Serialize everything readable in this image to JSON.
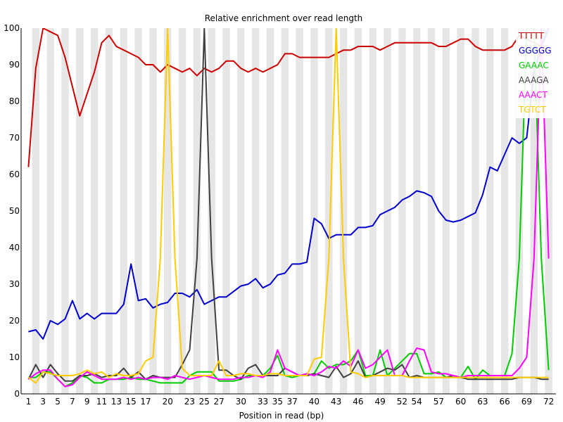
{
  "chart_data": {
    "type": "line",
    "title": "Relative enrichment over read length",
    "xlabel": "Position in read (bp)",
    "ylabel": "",
    "ylim": [
      0,
      100
    ],
    "yticks": [
      0,
      10,
      20,
      30,
      40,
      50,
      60,
      70,
      80,
      90,
      100
    ],
    "x": [
      1,
      2,
      3,
      4,
      5,
      6,
      7,
      8,
      9,
      10,
      11,
      12,
      13,
      14,
      15,
      16,
      17,
      18,
      19,
      20,
      21,
      22,
      23,
      24,
      25,
      26,
      27,
      28,
      29,
      30,
      31,
      32,
      33,
      34,
      35,
      36,
      37,
      38,
      39,
      40,
      41,
      42,
      43,
      44,
      45,
      46,
      47,
      48,
      49,
      50,
      51,
      52,
      53,
      54,
      55,
      56,
      57,
      58,
      59,
      60,
      61,
      62,
      63,
      64,
      65,
      66,
      67,
      68,
      69,
      70,
      71,
      72
    ],
    "xtick_labels": [
      "1",
      "3",
      "5",
      "7",
      "9",
      "11",
      "13",
      "15",
      "17",
      "20",
      "23",
      "25",
      "27",
      "30",
      "33",
      "35",
      "37",
      "40",
      "43",
      "46",
      "49",
      "52",
      "54",
      "57",
      "60",
      "63",
      "66",
      "69",
      "72"
    ],
    "xtick_positions": [
      1,
      3,
      5,
      7,
      9,
      11,
      13,
      15,
      17,
      20,
      23,
      25,
      27,
      30,
      33,
      35,
      37,
      40,
      43,
      46,
      49,
      52,
      54,
      57,
      60,
      63,
      66,
      69,
      72
    ],
    "grid": "alternating vertical bands",
    "legend": "top-right",
    "series": [
      {
        "name": "TTTTT",
        "color": "#cc0000",
        "values": [
          62,
          89,
          100,
          99,
          98,
          92,
          84,
          76,
          82,
          88,
          96,
          98,
          95,
          94,
          93,
          92,
          90,
          90,
          88,
          90,
          89,
          88,
          89,
          87,
          89,
          88,
          89,
          91,
          91,
          89,
          88,
          89,
          88,
          89,
          90,
          93,
          93,
          92,
          92,
          92,
          92,
          92,
          93,
          94,
          94,
          95,
          95,
          95,
          94,
          95,
          96,
          96,
          96,
          96,
          96,
          96,
          95,
          95,
          96,
          97,
          97,
          95,
          94,
          94,
          94,
          94,
          95,
          98,
          97,
          96,
          95,
          94
        ]
      },
      {
        "name": "GGGGG",
        "color": "#0000cc",
        "values": [
          17,
          17.5,
          15,
          20,
          19,
          20.5,
          25.5,
          20.5,
          22,
          20.5,
          22,
          22,
          22,
          24.5,
          35.5,
          25.5,
          26,
          23.5,
          24.5,
          25,
          27.5,
          27.5,
          26.5,
          28.5,
          24.5,
          25.5,
          26.5,
          26.5,
          28,
          29.5,
          30,
          31.5,
          29,
          30,
          32.5,
          33,
          35.5,
          35.5,
          36,
          48,
          46.5,
          42.5,
          43.5,
          43.5,
          43.5,
          45.5,
          45.5,
          46,
          49,
          50,
          51,
          53,
          54,
          55.5,
          55,
          54,
          50,
          47.5,
          47,
          47.5,
          48.5,
          49.5,
          54.5,
          62,
          61,
          65.5,
          70,
          68.5,
          70,
          88,
          95,
          100
        ]
      },
      {
        "name": "GAAAC",
        "color": "#00cc00",
        "values": [
          4.5,
          4.5,
          6,
          6,
          4,
          2,
          3,
          5,
          4.5,
          3,
          3,
          4,
          4,
          4,
          4.5,
          4,
          4,
          3.5,
          3,
          3,
          3,
          3,
          5,
          6,
          6,
          6,
          3.5,
          3.5,
          3.5,
          4,
          5,
          5,
          5,
          7,
          10.5,
          5,
          4.5,
          5,
          5,
          5.5,
          9,
          7,
          8,
          8,
          9,
          12,
          5,
          5,
          12,
          5,
          7,
          9,
          11,
          11,
          5.5,
          5.5,
          6,
          4.5,
          4.5,
          4.5,
          7.5,
          4,
          6.5,
          5,
          5,
          5,
          11,
          37,
          100,
          100,
          37,
          6.5
        ]
      },
      {
        "name": "AAAGA",
        "color": "#404040",
        "values": [
          4,
          8,
          4.5,
          8,
          5.5,
          3.5,
          3.5,
          5,
          5,
          5.5,
          4.5,
          5,
          5,
          7,
          4.5,
          6,
          4,
          5,
          4.5,
          4.5,
          4.5,
          8,
          12,
          37,
          100,
          37,
          6.5,
          6.5,
          5,
          4,
          7,
          8,
          5,
          5,
          5,
          7,
          6,
          5,
          5,
          5.5,
          5,
          4.5,
          7.5,
          4.5,
          5.5,
          9,
          4.5,
          5,
          6,
          7,
          6.5,
          8,
          4.5,
          5,
          4.5,
          4.5,
          4.5,
          4.5,
          5,
          4.5,
          4,
          4,
          4,
          4,
          4,
          4,
          4,
          4.5,
          4.5,
          4.5,
          4,
          4
        ]
      },
      {
        "name": "AAACT",
        "color": "#ff00ff",
        "values": [
          4,
          5.5,
          6.5,
          6.5,
          4,
          2,
          2.5,
          4.5,
          6,
          5,
          4,
          4,
          4,
          4.5,
          4,
          4.5,
          4,
          4.5,
          4.5,
          4,
          5,
          4.5,
          4,
          4.5,
          5,
          4.5,
          4,
          4,
          4,
          4.5,
          4.5,
          5,
          4.5,
          6,
          12,
          7,
          6,
          5,
          5.5,
          5,
          6,
          7.5,
          7,
          9,
          7.5,
          12,
          7,
          8,
          10,
          12,
          5,
          5,
          9,
          12.5,
          12,
          6,
          5.5,
          5.5,
          5,
          4.5,
          5,
          5,
          5,
          5,
          5,
          5,
          5,
          7,
          10,
          37,
          100,
          37
        ]
      },
      {
        "name": "TGTCT",
        "color": "#ffcc00",
        "values": [
          4.5,
          3,
          6,
          5.5,
          5,
          5,
          5,
          5.5,
          6.5,
          5.5,
          6,
          4.5,
          5.5,
          5,
          5,
          5.5,
          9,
          10,
          37,
          100,
          37,
          7,
          5,
          5,
          5,
          5,
          9,
          5,
          5,
          5.5,
          5.5,
          5,
          5,
          5.5,
          5.5,
          5,
          5,
          5,
          5,
          9.5,
          10,
          37,
          100,
          37,
          6,
          5.5,
          4.5,
          5,
          5,
          5,
          5,
          5,
          4.5,
          4.5,
          4.5,
          4.5,
          4.5,
          4.5,
          4.5,
          4.5,
          4.5,
          4.5,
          4.5,
          4.5,
          4.5,
          4.5,
          4.5,
          4.5,
          4.5,
          4.5,
          4.5,
          4.5
        ]
      }
    ]
  }
}
